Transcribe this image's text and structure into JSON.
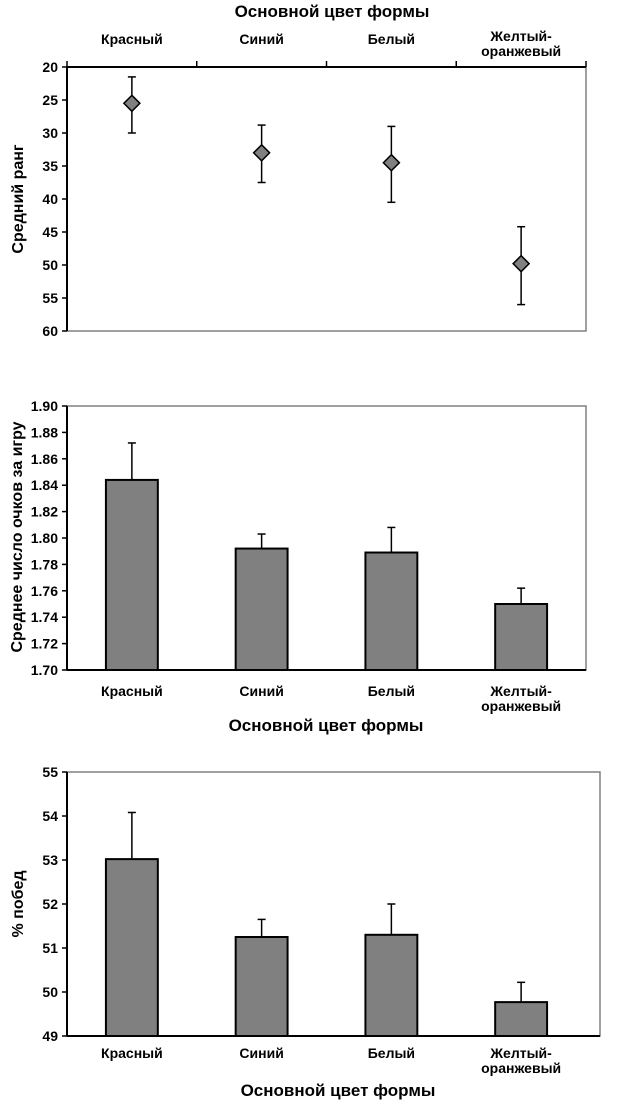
{
  "chart_data": [
    {
      "type": "scatter",
      "title": "Основной цвет формы",
      "categories": [
        "Красный",
        "Синий",
        "Белый",
        "Желтый-оранжевый"
      ],
      "category_lines": [
        [
          "Красный"
        ],
        [
          "Синий"
        ],
        [
          "Белый"
        ],
        [
          "Желтый-",
          "оранжевый"
        ]
      ],
      "ylabel": "Средний ранг",
      "ylim": [
        20,
        60
      ],
      "y_inverted": true,
      "yticks": [
        "20",
        "25",
        "30",
        "35",
        "40",
        "45",
        "50",
        "55",
        "60"
      ],
      "values": [
        25.5,
        33,
        34.5,
        49.8
      ],
      "err_low": [
        21.5,
        28.8,
        29,
        44.2
      ],
      "err_high": [
        30,
        37.5,
        40.5,
        56
      ],
      "marker": "diamond",
      "color": "#808080",
      "xaxis_position": "top"
    },
    {
      "type": "bar",
      "categories": [
        "Красный",
        "Синий",
        "Белый",
        "Желтый-оранжевый"
      ],
      "category_lines": [
        [
          "Красный"
        ],
        [
          "Синий"
        ],
        [
          "Белый"
        ],
        [
          "Желтый-",
          "оранжевый"
        ]
      ],
      "xlabel": "Основной цвет формы",
      "ylabel": "Среднее число очков за игру",
      "ylim": [
        1.7,
        1.9
      ],
      "yticks": [
        "1.70",
        "1.72",
        "1.74",
        "1.76",
        "1.78",
        "1.80",
        "1.82",
        "1.84",
        "1.86",
        "1.88",
        "1.90"
      ],
      "values": [
        1.844,
        1.792,
        1.789,
        1.75
      ],
      "err_high": [
        1.872,
        1.803,
        1.808,
        1.762
      ],
      "color": "#808080"
    },
    {
      "type": "bar",
      "categories": [
        "Красный",
        "Синий",
        "Белый",
        "Желтый-оранжевый"
      ],
      "category_lines": [
        [
          "Красный"
        ],
        [
          "Синий"
        ],
        [
          "Белый"
        ],
        [
          "Желтый-",
          "оранжевый"
        ]
      ],
      "xlabel": "Основной цвет формы",
      "ylabel": "% побед",
      "ylim": [
        49,
        55
      ],
      "yticks": [
        "49",
        "50",
        "51",
        "52",
        "53",
        "54",
        "55"
      ],
      "values": [
        53.02,
        51.25,
        51.3,
        49.77
      ],
      "err_high": [
        54.08,
        51.65,
        52.0,
        50.22
      ],
      "color": "#808080"
    }
  ]
}
